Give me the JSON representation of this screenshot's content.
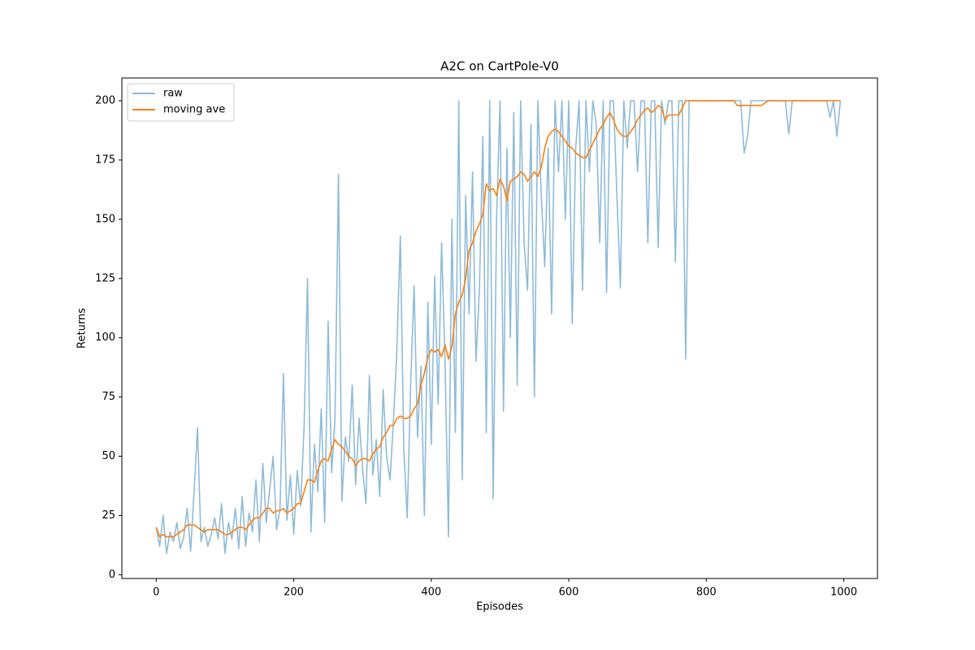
{
  "chart_data": {
    "type": "line",
    "title": "A2C on CartPole-V0",
    "x_label": "Episodes",
    "y_label": "Returns",
    "x": [
      0,
      5,
      10,
      15,
      20,
      25,
      30,
      35,
      40,
      45,
      50,
      55,
      60,
      65,
      70,
      75,
      80,
      85,
      90,
      95,
      100,
      105,
      110,
      115,
      120,
      125,
      130,
      135,
      140,
      145,
      150,
      155,
      160,
      165,
      170,
      175,
      180,
      185,
      190,
      195,
      200,
      205,
      210,
      215,
      220,
      225,
      230,
      235,
      240,
      245,
      250,
      255,
      260,
      265,
      270,
      275,
      280,
      285,
      290,
      295,
      300,
      305,
      310,
      315,
      320,
      325,
      330,
      335,
      340,
      345,
      350,
      355,
      360,
      365,
      370,
      375,
      380,
      385,
      390,
      395,
      400,
      405,
      410,
      415,
      420,
      425,
      430,
      435,
      440,
      445,
      450,
      455,
      460,
      465,
      470,
      475,
      480,
      485,
      490,
      495,
      500,
      505,
      510,
      515,
      520,
      525,
      530,
      535,
      540,
      545,
      550,
      555,
      560,
      565,
      570,
      575,
      580,
      585,
      590,
      595,
      600,
      605,
      610,
      615,
      620,
      625,
      630,
      635,
      640,
      645,
      650,
      655,
      660,
      665,
      670,
      675,
      680,
      685,
      690,
      695,
      700,
      705,
      710,
      715,
      720,
      725,
      730,
      735,
      740,
      745,
      750,
      755,
      760,
      765,
      770,
      775,
      780,
      785,
      790,
      795,
      800,
      805,
      810,
      815,
      820,
      825,
      830,
      835,
      840,
      845,
      850,
      855,
      860,
      865,
      870,
      875,
      880,
      885,
      890,
      895,
      900,
      905,
      910,
      915,
      920,
      925,
      930,
      935,
      940,
      945,
      950,
      955,
      960,
      965,
      970,
      975,
      980,
      985,
      990,
      995
    ],
    "series": [
      {
        "name": "raw",
        "color": "#8fbbd9",
        "values": [
          20,
          12,
          25,
          9,
          18,
          14,
          22,
          11,
          16,
          28,
          10,
          35,
          62,
          14,
          20,
          12,
          17,
          24,
          15,
          30,
          9,
          22,
          15,
          28,
          11,
          33,
          12,
          26,
          18,
          40,
          14,
          47,
          22,
          36,
          50,
          19,
          28,
          85,
          23,
          42,
          17,
          44,
          29,
          62,
          125,
          18,
          55,
          35,
          70,
          22,
          107,
          43,
          66,
          169,
          31,
          58,
          48,
          80,
          38,
          66,
          45,
          30,
          84,
          42,
          57,
          33,
          78,
          50,
          40,
          65,
          95,
          143,
          53,
          24,
          80,
          122,
          58,
          88,
          25,
          115,
          55,
          126,
          72,
          140,
          90,
          16,
          150,
          60,
          200,
          40,
          160,
          110,
          170,
          90,
          120,
          185,
          60,
          200,
          32,
          150,
          200,
          69,
          180,
          100,
          195,
          80,
          200,
          140,
          120,
          190,
          75,
          200,
          160,
          130,
          180,
          110,
          200,
          170,
          200,
          150,
          200,
          106,
          180,
          200,
          120,
          200,
          170,
          200,
          190,
          140,
          200,
          119,
          200,
          200,
          160,
          121,
          200,
          180,
          200,
          200,
          170,
          200,
          200,
          140,
          200,
          200,
          138,
          200,
          190,
          200,
          200,
          132,
          200,
          200,
          91,
          200,
          200,
          200,
          200,
          200,
          200,
          200,
          200,
          200,
          200,
          200,
          200,
          200,
          200,
          200,
          200,
          178,
          185,
          200,
          200,
          200,
          200,
          200,
          200,
          200,
          200,
          200,
          200,
          200,
          186,
          200,
          200,
          200,
          200,
          200,
          200,
          200,
          200,
          200,
          200,
          200,
          193,
          200,
          185,
          200
        ]
      },
      {
        "name": "moving ave",
        "color": "#ff7f0e",
        "values": [
          20,
          16,
          17,
          16,
          16,
          16,
          17,
          18,
          19,
          21,
          21,
          21,
          20,
          19,
          18,
          19,
          19,
          19,
          19,
          18,
          17,
          17,
          18,
          19,
          20,
          20,
          19,
          21,
          23,
          24,
          24,
          26,
          28,
          28,
          26,
          27,
          27,
          28,
          26,
          27,
          28,
          30,
          30,
          35,
          40,
          40,
          39,
          44,
          48,
          49,
          48,
          53,
          57,
          55,
          54,
          52,
          50,
          49,
          46,
          48,
          49,
          49,
          48,
          51,
          53,
          54,
          58,
          60,
          63,
          63,
          66,
          67,
          66,
          66,
          67,
          70,
          72,
          80,
          85,
          92,
          95,
          94,
          95,
          92,
          97,
          91,
          96,
          110,
          115,
          118,
          125,
          137,
          140,
          145,
          148,
          152,
          165,
          162,
          163,
          160,
          167,
          164,
          158,
          166,
          167,
          168,
          170,
          169,
          166,
          168,
          170,
          168,
          172,
          180,
          185,
          187,
          188,
          187,
          185,
          183,
          181,
          180,
          178,
          177,
          176,
          176,
          179,
          182,
          185,
          188,
          190,
          193,
          195,
          192,
          188,
          186,
          185,
          185,
          187,
          189,
          192,
          194,
          196,
          197,
          195,
          196,
          198,
          197,
          192,
          194,
          194,
          194,
          194,
          197,
          200,
          200,
          200,
          200,
          200,
          200,
          200,
          200,
          200,
          200,
          200,
          200,
          200,
          200,
          200,
          198,
          198,
          198,
          198,
          198,
          198,
          198,
          198,
          199,
          200,
          200,
          200,
          200,
          200,
          200,
          200,
          200,
          200,
          200,
          200,
          200,
          200,
          200,
          200,
          200,
          200,
          200,
          200,
          200,
          200,
          200
        ]
      }
    ],
    "xlim": [
      -50,
      1049
    ],
    "ylim": [
      -1.6,
      209.6
    ],
    "xticks": [
      0,
      200,
      400,
      600,
      800,
      1000
    ],
    "yticks": [
      0,
      25,
      50,
      75,
      100,
      125,
      150,
      175,
      200
    ],
    "legend": "upper-left",
    "grid": false
  }
}
